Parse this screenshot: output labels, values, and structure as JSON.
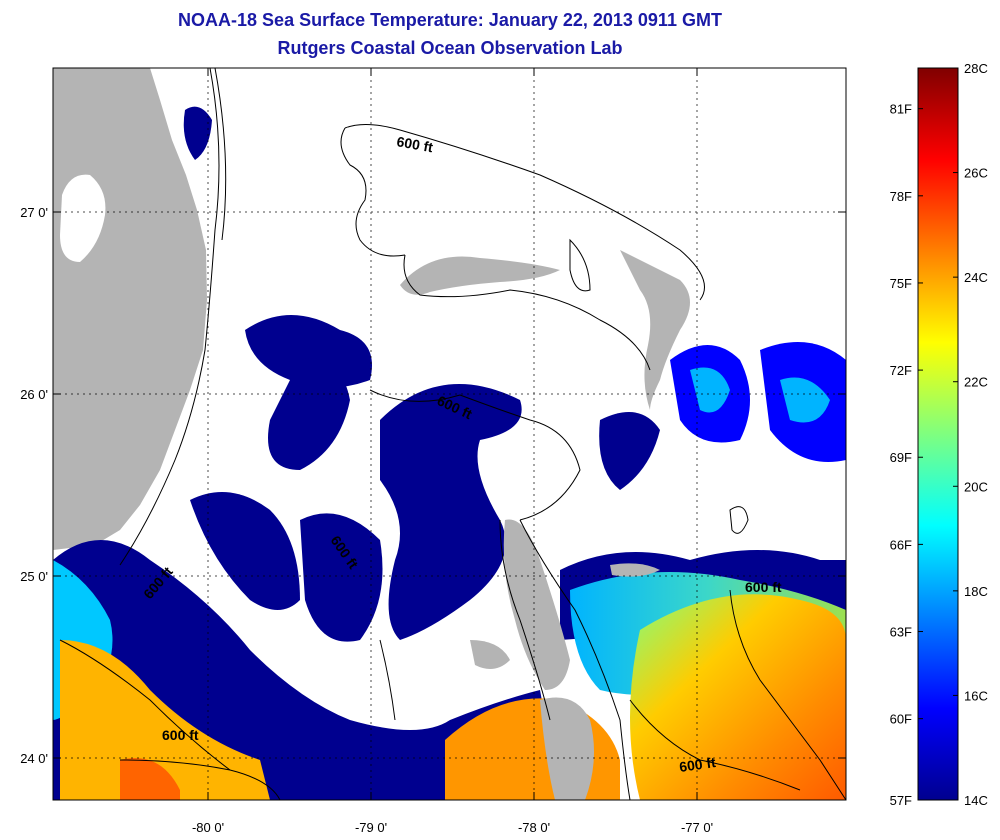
{
  "title": "NOAA-18 Sea Surface Temperature:  January 22, 2013 0911 GMT",
  "subtitle": "Rutgers Coastal Ocean Observation Lab",
  "lon_ticks": [
    "-80 0'",
    "-79 0'",
    "-78 0'",
    "-77 0'"
  ],
  "lat_ticks": [
    "27 0'",
    "26 0'",
    "25 0'",
    "24 0'"
  ],
  "contour_labels": [
    "600 ft",
    "600 ft",
    "600 ft",
    "600 ft",
    "600 ft",
    "600 ft"
  ],
  "colorbar": {
    "fahrenheit": [
      "81F",
      "78F",
      "75F",
      "72F",
      "69F",
      "66F",
      "63F",
      "60F",
      "57F"
    ],
    "celsius": [
      "28C",
      "26C",
      "24C",
      "22C",
      "20C",
      "18C",
      "16C",
      "14C"
    ],
    "min_c": 14,
    "max_c": 28
  },
  "colors": {
    "land": "#b4b4b4",
    "cloud": "#ffffff",
    "title": "#1a1aa6"
  }
}
